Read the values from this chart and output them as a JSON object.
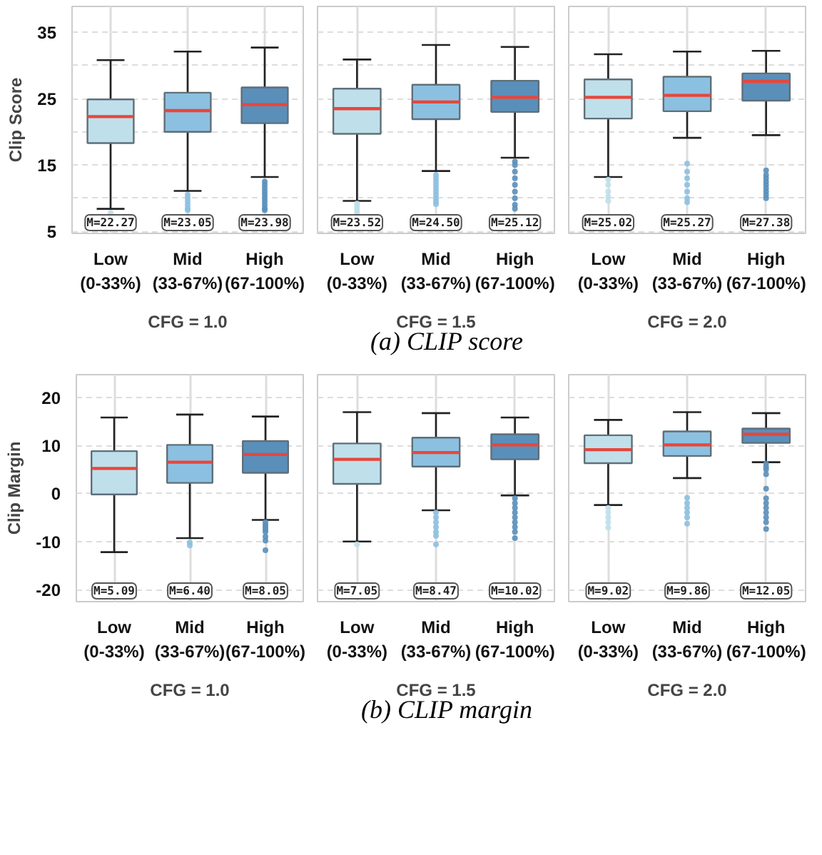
{
  "chart_data": [
    {
      "type": "box",
      "categories": [
        "Low\n(0-33%)",
        "Mid\n(33-67%)",
        "High\n(67-100%)"
      ],
      "xlabel": "CFG = 1.0",
      "ylabel": "Clip Score",
      "ylim": [
        4.7,
        38.9
      ],
      "yticks": [
        5,
        {
          "value": 10,
          "label": null
        },
        15,
        {
          "value": 20,
          "label": null
        },
        25,
        {
          "value": 30,
          "label": null
        },
        35
      ],
      "grid": true,
      "colors": [
        "#bfe0ea",
        "#8cc0e0",
        "#5a8fba"
      ],
      "boxes": [
        {
          "low": 8.4,
          "q1": 18.3,
          "median": 22.3,
          "q3": 24.9,
          "high": 30.8,
          "outliers": [
            7.8
          ]
        },
        {
          "low": 11.1,
          "q1": 20.0,
          "median": 23.2,
          "q3": 25.9,
          "high": 32.1,
          "outliers": [
            10.5,
            10.0,
            9.5,
            9.0,
            8.5,
            8.2
          ]
        },
        {
          "low": 13.2,
          "q1": 21.3,
          "median": 24.1,
          "q3": 26.7,
          "high": 32.7,
          "outliers": [
            12.5,
            12.0,
            11.5,
            11.0,
            10.5,
            10.0,
            9.5,
            9.0,
            8.5,
            8.2
          ]
        }
      ],
      "annotations": [
        "M=22.27",
        "M=23.05",
        "M=23.98"
      ]
    },
    {
      "type": "box",
      "categories": [
        "Low\n(0-33%)",
        "Mid\n(33-67%)",
        "High\n(67-100%)"
      ],
      "xlabel": "CFG = 1.5",
      "ylim": [
        4.7,
        38.9
      ],
      "yticks": [
        5,
        {
          "value": 10,
          "label": null
        },
        15,
        {
          "value": 20,
          "label": null
        },
        25,
        {
          "value": 30,
          "label": null
        },
        35
      ],
      "grid": true,
      "tick_labels": "x",
      "colors": [
        "#bfe0ea",
        "#8cc0e0",
        "#5a8fba"
      ],
      "boxes": [
        {
          "low": 9.6,
          "q1": 19.7,
          "median": 23.5,
          "q3": 26.5,
          "high": 30.9,
          "outliers": [
            9.2,
            8.8,
            8.4,
            8.0,
            7.6
          ]
        },
        {
          "low": 14.1,
          "q1": 21.9,
          "median": 24.5,
          "q3": 27.1,
          "high": 33.1,
          "outliers": [
            13.5,
            13.0,
            12.5,
            12.0,
            11.5,
            11.0,
            10.5,
            10.0,
            9.5,
            9.1
          ]
        },
        {
          "low": 16.1,
          "q1": 23.0,
          "median": 25.2,
          "q3": 27.7,
          "high": 32.8,
          "outliers": [
            15.5,
            15.0,
            14.0,
            13.0,
            12.0,
            11.0,
            10.0,
            9.0,
            8.4
          ]
        }
      ],
      "annotations": [
        "M=23.52",
        "M=24.50",
        "M=25.12",
        "(a) CLIP score"
      ]
    },
    {
      "type": "box",
      "categories": [
        "Low\n(0-33%)",
        "Mid\n(33-67%)",
        "High\n(67-100%)"
      ],
      "xlabel": "CFG = 2.0",
      "ylim": [
        4.7,
        38.9
      ],
      "yticks": [
        5,
        {
          "value": 10,
          "label": null
        },
        15,
        {
          "value": 20,
          "label": null
        },
        25,
        {
          "value": 30,
          "label": null
        },
        35
      ],
      "grid": true,
      "tick_labels": "x",
      "colors": [
        "#bfe0ea",
        "#8cc0e0",
        "#5a8fba"
      ],
      "boxes": [
        {
          "low": 13.2,
          "q1": 22.0,
          "median": 25.2,
          "q3": 27.9,
          "high": 31.7,
          "outliers": [
            12.8,
            12.0,
            11.0,
            10.2,
            9.6
          ]
        },
        {
          "low": 19.1,
          "q1": 23.1,
          "median": 25.5,
          "q3": 28.3,
          "high": 32.1,
          "outliers": [
            15.2,
            14.0,
            13.0,
            12.0,
            11.0,
            10.0,
            9.4
          ]
        },
        {
          "low": 19.5,
          "q1": 24.7,
          "median": 27.6,
          "q3": 28.8,
          "high": 32.2,
          "outliers": [
            14.2,
            13.5,
            13.0,
            12.5,
            12.0,
            11.5,
            11.0,
            10.5,
            10.0
          ]
        }
      ],
      "annotations": [
        "M=25.02",
        "M=25.27",
        "M=27.38"
      ]
    },
    {
      "type": "box",
      "categories": [
        "Low\n(0-33%)",
        "Mid\n(33-67%)",
        "High\n(67-100%)"
      ],
      "xlabel": "CFG = 1.0",
      "ylabel": "Clip Margin",
      "ylim": [
        -22.5,
        24.7
      ],
      "yticks": [
        -20,
        -10,
        0,
        10,
        20
      ],
      "grid": true,
      "colors": [
        "#bfe0ea",
        "#8cc0e0",
        "#5a8fba"
      ],
      "boxes": [
        {
          "low": -12.2,
          "q1": -0.2,
          "median": 5.2,
          "q3": 8.8,
          "high": 15.8
        },
        {
          "low": -9.3,
          "q1": 2.2,
          "median": 6.5,
          "q3": 10.1,
          "high": 16.4,
          "outliers": [
            -10.2,
            -10.8
          ]
        },
        {
          "low": -5.5,
          "q1": 4.3,
          "median": 8.1,
          "q3": 10.9,
          "high": 16.0,
          "outliers": [
            -6.0,
            -6.5,
            -7.0,
            -7.5,
            -8.0,
            -9.0,
            -9.8,
            -11.8
          ]
        }
      ],
      "annotations": [
        "M=5.09",
        "M=6.40",
        "M=8.05"
      ]
    },
    {
      "type": "box",
      "categories": [
        "Low\n(0-33%)",
        "Mid\n(33-67%)",
        "High\n(67-100%)"
      ],
      "xlabel": "CFG = 1.5",
      "ylim": [
        -22.5,
        24.7
      ],
      "yticks": [
        -20,
        -10,
        0,
        10,
        20
      ],
      "grid": true,
      "tick_labels": "x",
      "colors": [
        "#bfe0ea",
        "#8cc0e0",
        "#5a8fba"
      ],
      "boxes": [
        {
          "low": -10.0,
          "q1": 2.0,
          "median": 7.1,
          "q3": 10.4,
          "high": 16.9,
          "outliers": [
            -10.6
          ]
        },
        {
          "low": -3.5,
          "q1": 5.6,
          "median": 8.5,
          "q3": 11.6,
          "high": 16.7,
          "outliers": [
            -4.0,
            -5.0,
            -6.0,
            -7.0,
            -8.0,
            -8.8,
            -10.6
          ]
        },
        {
          "low": -0.4,
          "q1": 7.1,
          "median": 10.1,
          "q3": 12.3,
          "high": 15.8,
          "outliers": [
            -1.0,
            -2.0,
            -3.0,
            -4.0,
            -5.0,
            -6.0,
            -7.0,
            -8.0,
            -9.3
          ]
        }
      ],
      "annotations": [
        "M=7.05",
        "M=8.47",
        "M=10.02",
        "(b) CLIP margin"
      ]
    },
    {
      "type": "box",
      "categories": [
        "Low\n(0-33%)",
        "Mid\n(33-67%)",
        "High\n(67-100%)"
      ],
      "xlabel": "CFG = 2.0",
      "ylim": [
        -22.5,
        24.7
      ],
      "yticks": [
        -20,
        -10,
        0,
        10,
        20
      ],
      "grid": true,
      "tick_labels": "x",
      "colors": [
        "#bfe0ea",
        "#8cc0e0",
        "#5a8fba"
      ],
      "boxes": [
        {
          "low": -2.4,
          "q1": 6.3,
          "median": 9.1,
          "q3": 12.1,
          "high": 15.3,
          "outliers": [
            -3.0,
            -4.0,
            -5.0,
            -6.0,
            -7.1
          ]
        },
        {
          "low": 3.2,
          "q1": 7.8,
          "median": 10.1,
          "q3": 12.9,
          "high": 16.9,
          "outliers": [
            -0.9,
            -2.0,
            -3.0,
            -4.0,
            -5.0,
            -6.3
          ]
        },
        {
          "low": 6.5,
          "q1": 10.5,
          "median": 12.3,
          "q3": 13.5,
          "high": 16.7,
          "outliers": [
            6.2,
            5.5,
            5.0,
            4.0,
            1.0,
            -1.0,
            -2.0,
            -3.0,
            -4.0,
            -5.0,
            -6.0,
            -7.4
          ]
        }
      ],
      "annotations": [
        "M=9.02",
        "M=9.86",
        "M=12.05"
      ]
    }
  ]
}
